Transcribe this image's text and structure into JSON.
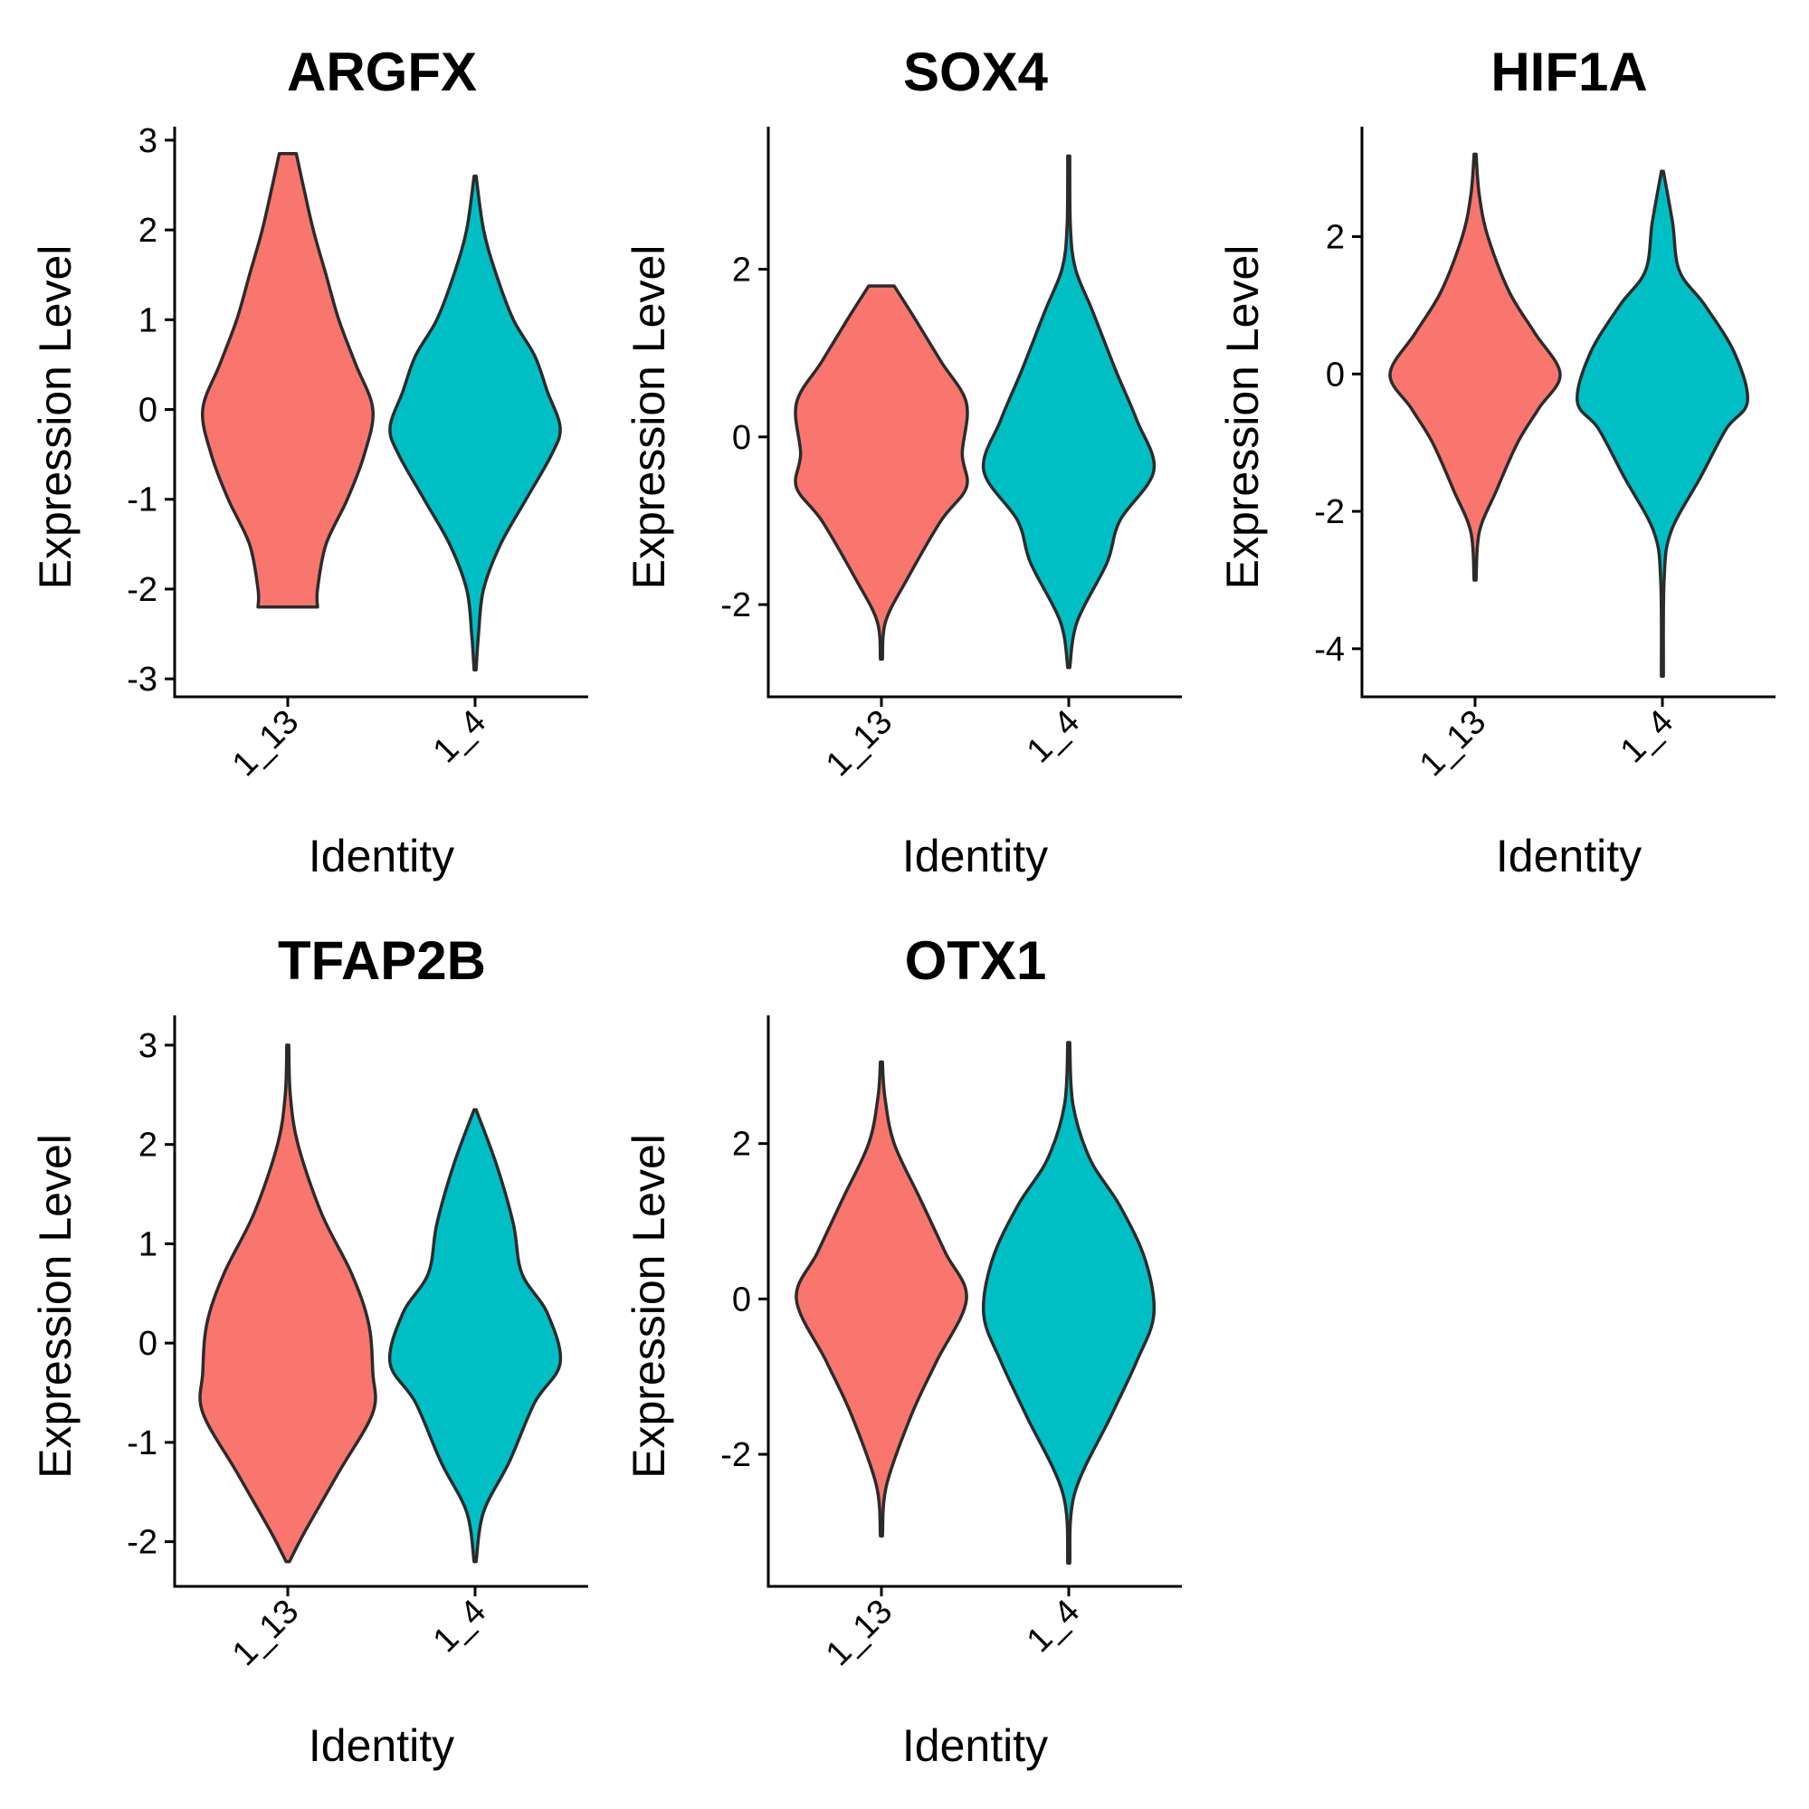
{
  "colors": {
    "1_13": "#F8766D",
    "1_4": "#00BFC4"
  },
  "chart_data": [
    {
      "type": "violin",
      "title": "ARGFX",
      "xlabel": "Identity",
      "ylabel": "Expression Level",
      "categories": [
        "1_13",
        "1_4"
      ],
      "ylim": [
        -3.2,
        3.15
      ],
      "yticks": [
        3,
        2,
        1,
        0,
        -1,
        -2,
        -3
      ],
      "ytick_labels": [
        "3",
        "2",
        "1",
        "0",
        "-1",
        "-2",
        "-3"
      ],
      "violins": [
        {
          "group": "1_13",
          "min": -2.2,
          "max": 2.85,
          "profile": [
            [
              -2.2,
              0.35
            ],
            [
              -2.0,
              0.35
            ],
            [
              -1.5,
              0.45
            ],
            [
              -1.0,
              0.7
            ],
            [
              -0.5,
              0.9
            ],
            [
              0,
              1.0
            ],
            [
              0.5,
              0.8
            ],
            [
              1.0,
              0.6
            ],
            [
              1.5,
              0.45
            ],
            [
              2.0,
              0.3
            ],
            [
              2.5,
              0.18
            ],
            [
              2.85,
              0.1
            ]
          ]
        },
        {
          "group": "1_4",
          "min": -2.9,
          "max": 2.6,
          "profile": [
            [
              -2.9,
              0.0
            ],
            [
              -2.5,
              0.04
            ],
            [
              -2.0,
              0.1
            ],
            [
              -1.5,
              0.3
            ],
            [
              -1.0,
              0.6
            ],
            [
              -0.5,
              0.9
            ],
            [
              -0.2,
              1.0
            ],
            [
              0.2,
              0.85
            ],
            [
              0.6,
              0.7
            ],
            [
              1.0,
              0.45
            ],
            [
              1.5,
              0.25
            ],
            [
              2.0,
              0.1
            ],
            [
              2.6,
              0.0
            ]
          ]
        }
      ]
    },
    {
      "type": "violin",
      "title": "SOX4",
      "xlabel": "Identity",
      "ylabel": "Expression Level",
      "categories": [
        "1_13",
        "1_4"
      ],
      "ylim": [
        -3.1,
        3.7
      ],
      "yticks": [
        2,
        0,
        -2
      ],
      "ytick_labels": [
        "2",
        "0",
        "-2"
      ],
      "violins": [
        {
          "group": "1_13",
          "min": -2.65,
          "max": 1.8,
          "profile": [
            [
              -2.65,
              0.0
            ],
            [
              -2.2,
              0.05
            ],
            [
              -1.7,
              0.3
            ],
            [
              -1.0,
              0.7
            ],
            [
              -0.6,
              1.0
            ],
            [
              -0.2,
              0.95
            ],
            [
              0.4,
              1.0
            ],
            [
              0.9,
              0.7
            ],
            [
              1.4,
              0.4
            ],
            [
              1.8,
              0.15
            ]
          ]
        },
        {
          "group": "1_4",
          "min": -2.75,
          "max": 3.35,
          "profile": [
            [
              -2.75,
              0.0
            ],
            [
              -2.2,
              0.1
            ],
            [
              -1.5,
              0.45
            ],
            [
              -1.0,
              0.6
            ],
            [
              -0.4,
              1.0
            ],
            [
              0.2,
              0.8
            ],
            [
              0.8,
              0.55
            ],
            [
              1.5,
              0.28
            ],
            [
              2.0,
              0.08
            ],
            [
              2.5,
              0.02
            ],
            [
              3.35,
              0.0
            ]
          ]
        }
      ]
    },
    {
      "type": "violin",
      "title": "HIF1A",
      "xlabel": "Identity",
      "ylabel": "Expression Level",
      "categories": [
        "1_13",
        "1_4"
      ],
      "ylim": [
        -4.7,
        3.6
      ],
      "yticks": [
        2,
        0,
        -2,
        -4
      ],
      "ytick_labels": [
        "2",
        "0",
        "-2",
        "-4"
      ],
      "violins": [
        {
          "group": "1_13",
          "min": -3.0,
          "max": 3.2,
          "profile": [
            [
              -3.0,
              0.0
            ],
            [
              -2.3,
              0.05
            ],
            [
              -1.7,
              0.25
            ],
            [
              -1.0,
              0.5
            ],
            [
              -0.5,
              0.75
            ],
            [
              0,
              1.0
            ],
            [
              0.6,
              0.7
            ],
            [
              1.2,
              0.4
            ],
            [
              2.0,
              0.15
            ],
            [
              2.6,
              0.05
            ],
            [
              3.2,
              0.0
            ]
          ]
        },
        {
          "group": "1_4",
          "min": -4.4,
          "max": 2.95,
          "profile": [
            [
              -4.4,
              0.0
            ],
            [
              -3.0,
              0.02
            ],
            [
              -2.3,
              0.1
            ],
            [
              -1.5,
              0.45
            ],
            [
              -0.8,
              0.75
            ],
            [
              -0.4,
              1.0
            ],
            [
              0.3,
              0.85
            ],
            [
              1.0,
              0.5
            ],
            [
              1.5,
              0.2
            ],
            [
              2.2,
              0.12
            ],
            [
              2.95,
              0.0
            ]
          ]
        }
      ]
    },
    {
      "type": "violin",
      "title": "TFAP2B",
      "xlabel": "Identity",
      "ylabel": "Expression Level",
      "categories": [
        "1_13",
        "1_4"
      ],
      "ylim": [
        -2.45,
        3.3
      ],
      "yticks": [
        3,
        2,
        1,
        0,
        -1,
        -2
      ],
      "ytick_labels": [
        "3",
        "2",
        "1",
        "0",
        "-1",
        "-2"
      ],
      "violins": [
        {
          "group": "1_13",
          "min": -2.2,
          "max": 3.0,
          "profile": [
            [
              -2.2,
              0.02
            ],
            [
              -1.9,
              0.2
            ],
            [
              -1.3,
              0.6
            ],
            [
              -0.7,
              1.0
            ],
            [
              -0.3,
              1.0
            ],
            [
              0.2,
              0.95
            ],
            [
              0.7,
              0.75
            ],
            [
              1.3,
              0.4
            ],
            [
              2.0,
              0.12
            ],
            [
              2.5,
              0.03
            ],
            [
              3.0,
              0.0
            ]
          ]
        },
        {
          "group": "1_4",
          "min": -2.2,
          "max": 2.35,
          "profile": [
            [
              -2.2,
              0.0
            ],
            [
              -1.7,
              0.1
            ],
            [
              -1.2,
              0.4
            ],
            [
              -0.6,
              0.7
            ],
            [
              -0.2,
              1.0
            ],
            [
              0.3,
              0.85
            ],
            [
              0.7,
              0.55
            ],
            [
              1.2,
              0.45
            ],
            [
              1.8,
              0.25
            ],
            [
              2.35,
              0.0
            ]
          ]
        }
      ]
    },
    {
      "type": "violin",
      "title": "OTX1",
      "xlabel": "Identity",
      "ylabel": "Expression Level",
      "categories": [
        "1_13",
        "1_4"
      ],
      "ylim": [
        -3.7,
        3.65
      ],
      "yticks": [
        2,
        0,
        -2
      ],
      "ytick_labels": [
        "2",
        "0",
        "-2"
      ],
      "violins": [
        {
          "group": "1_13",
          "min": -3.05,
          "max": 3.05,
          "profile": [
            [
              -3.05,
              0.0
            ],
            [
              -2.4,
              0.06
            ],
            [
              -1.5,
              0.35
            ],
            [
              -0.8,
              0.65
            ],
            [
              0,
              1.0
            ],
            [
              0.6,
              0.75
            ],
            [
              1.3,
              0.45
            ],
            [
              2.0,
              0.15
            ],
            [
              2.6,
              0.04
            ],
            [
              3.05,
              0.0
            ]
          ]
        },
        {
          "group": "1_4",
          "min": -3.4,
          "max": 3.3,
          "profile": [
            [
              -3.4,
              0.0
            ],
            [
              -2.5,
              0.07
            ],
            [
              -1.5,
              0.5
            ],
            [
              -0.8,
              0.8
            ],
            [
              -0.2,
              1.0
            ],
            [
              0.5,
              0.9
            ],
            [
              1.2,
              0.6
            ],
            [
              1.8,
              0.25
            ],
            [
              2.5,
              0.05
            ],
            [
              3.3,
              0.0
            ]
          ]
        }
      ]
    }
  ]
}
